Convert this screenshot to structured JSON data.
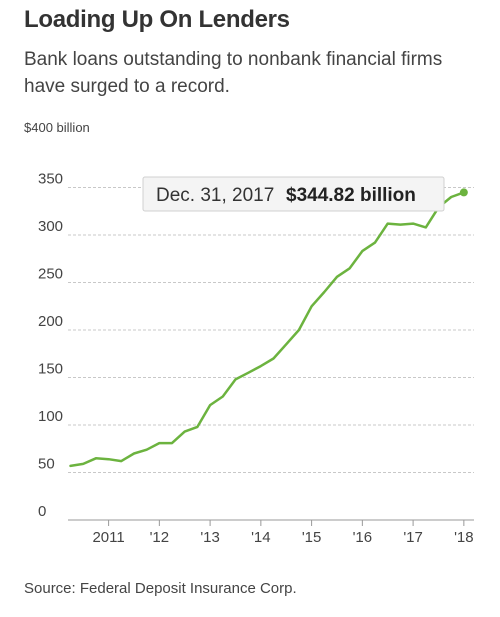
{
  "header": {
    "title": "Loading Up On Lenders",
    "subtitle": "Bank loans outstanding to nonbank financial firms have surged to a record."
  },
  "footer": {
    "source": "Source: Federal Deposit Insurance Corp."
  },
  "colors": {
    "line": "#6cb33f",
    "grid": "#c8c8c8",
    "axis": "#999999",
    "text": "#333333"
  },
  "tooltip": {
    "date": "Dec. 31, 2017",
    "value": "$344.82 billion"
  },
  "chart_data": {
    "type": "line",
    "title": "Loading Up On Lenders",
    "subtitle": "Bank loans outstanding to nonbank financial firms have surged to a record.",
    "unit_label": "$400 billion",
    "xlabel": "",
    "ylabel": "",
    "ylim": [
      0,
      400
    ],
    "xlim": [
      2010.2,
      2018.2
    ],
    "grid": true,
    "y_ticks": [
      0,
      50,
      100,
      150,
      200,
      250,
      300,
      350
    ],
    "y_tick_labels": [
      "0",
      "50",
      "100",
      "150",
      "200",
      "250",
      "300",
      "350"
    ],
    "x_ticks": [
      2011,
      2012,
      2013,
      2014,
      2015,
      2016,
      2017,
      2018
    ],
    "x_tick_labels": [
      "2011",
      "'12",
      "'13",
      "'14",
      "'15",
      "'16",
      "'17",
      "'18"
    ],
    "series": [
      {
        "values": [
          [
            2010.25,
            57
          ],
          [
            2010.5,
            59
          ],
          [
            2010.75,
            65
          ],
          [
            2011.0,
            64
          ],
          [
            2011.25,
            62
          ],
          [
            2011.5,
            70
          ],
          [
            2011.75,
            74
          ],
          [
            2012.0,
            81
          ],
          [
            2012.25,
            81
          ],
          [
            2012.5,
            93
          ],
          [
            2012.75,
            98
          ],
          [
            2013.0,
            121
          ],
          [
            2013.25,
            130
          ],
          [
            2013.5,
            148
          ],
          [
            2013.75,
            155
          ],
          [
            2014.0,
            162
          ],
          [
            2014.25,
            170
          ],
          [
            2014.5,
            185
          ],
          [
            2014.75,
            200
          ],
          [
            2015.0,
            225
          ],
          [
            2015.25,
            240
          ],
          [
            2015.5,
            256
          ],
          [
            2015.75,
            265
          ],
          [
            2016.0,
            283
          ],
          [
            2016.25,
            292
          ],
          [
            2016.5,
            312
          ],
          [
            2016.75,
            311
          ],
          [
            2017.0,
            312
          ],
          [
            2017.25,
            308
          ],
          [
            2017.5,
            329
          ],
          [
            2017.75,
            340
          ],
          [
            2018.0,
            344.82
          ]
        ]
      }
    ]
  }
}
